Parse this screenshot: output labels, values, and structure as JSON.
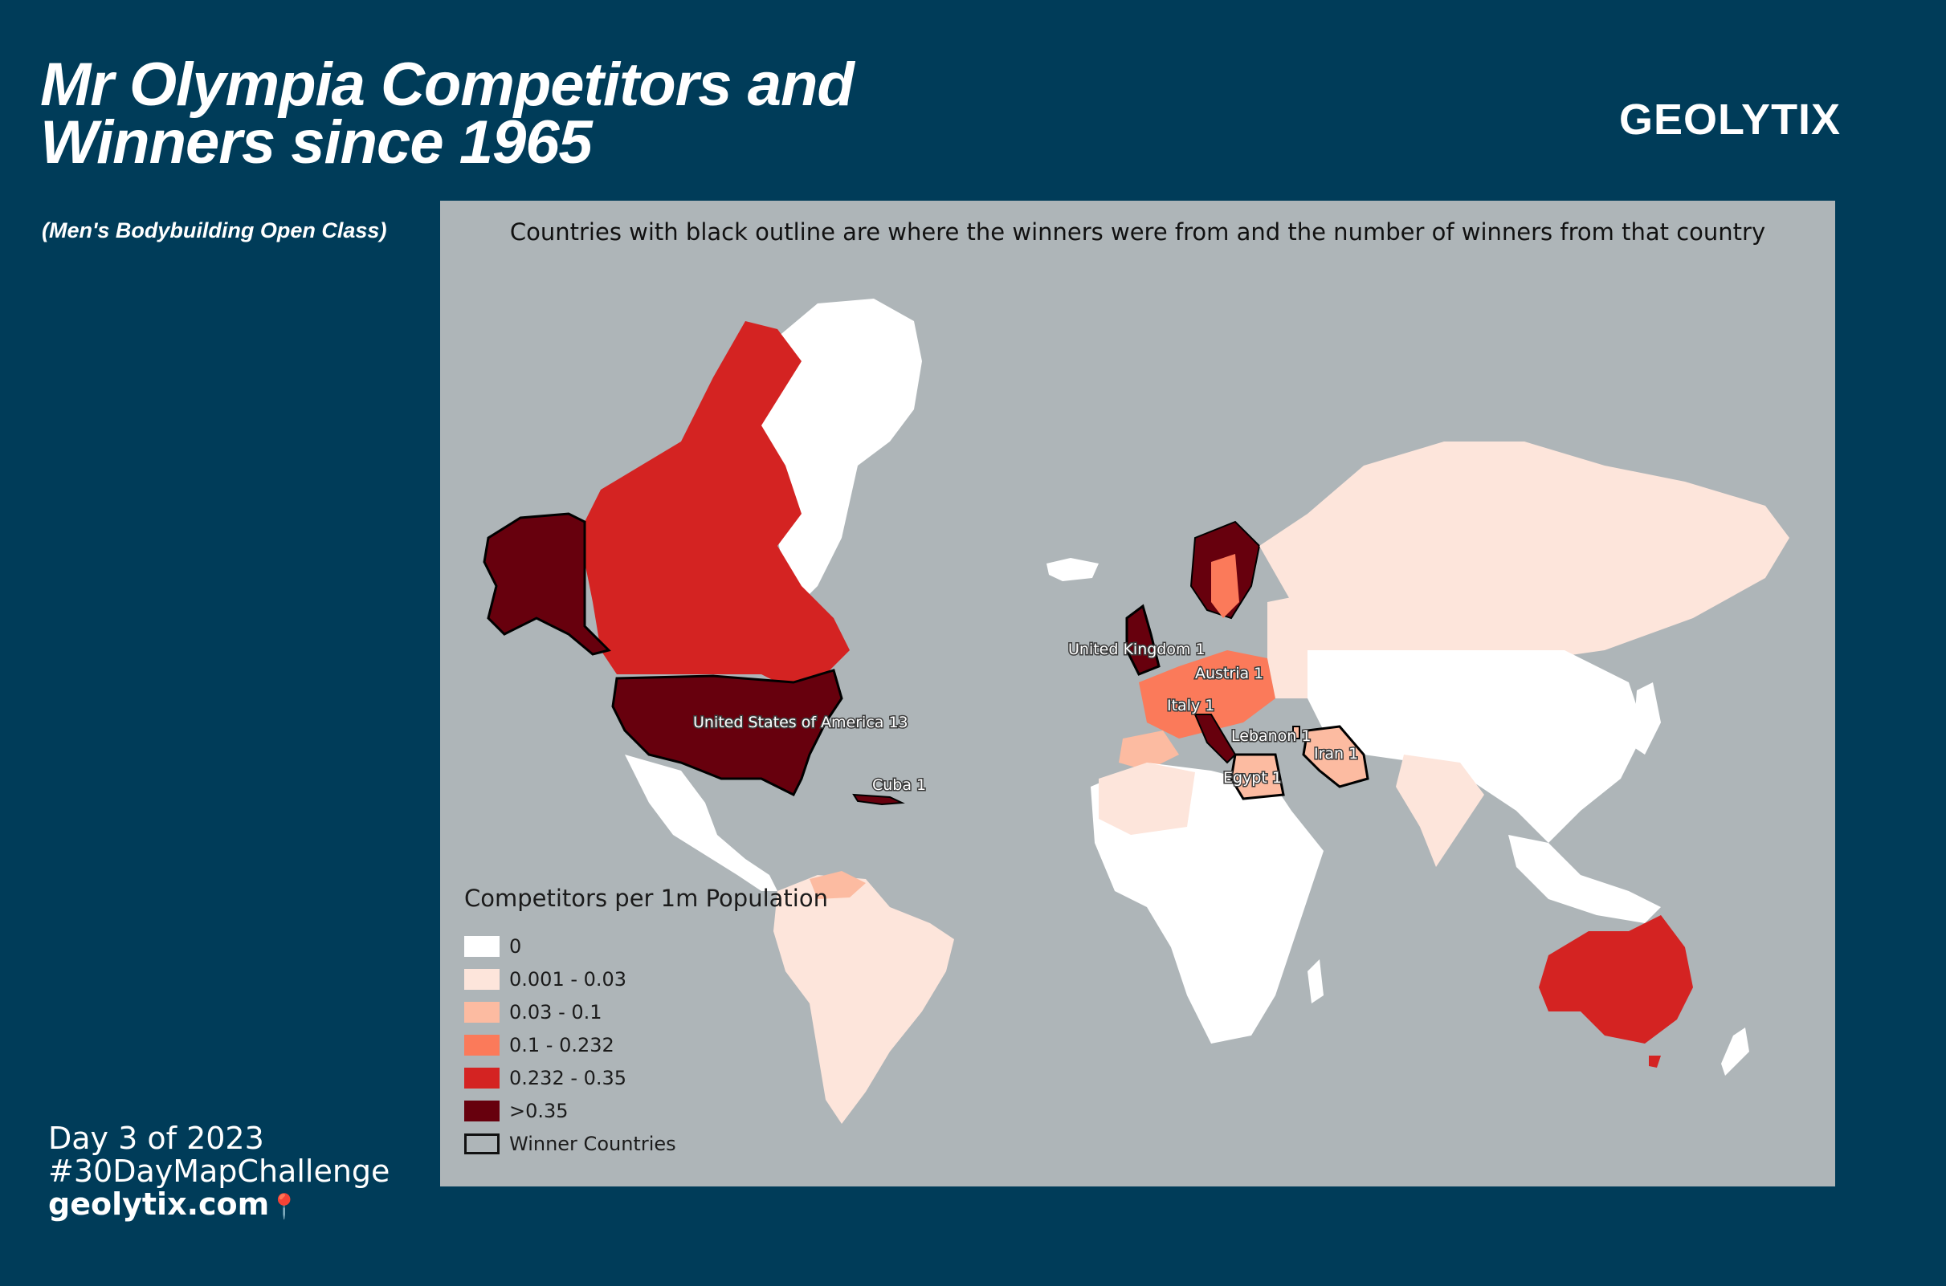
{
  "header": {
    "title_line1": "Mr Olympia Competitors and",
    "title_line2": "Winners since 1965",
    "subtitle": "(Men's Bodybuilding Open Class)",
    "brand": "GEOLYTIX"
  },
  "map": {
    "note": "Countries with black outline are where the winners were from and the number of winners from that country",
    "colors": {
      "ocean": "#aeb5b8",
      "c0": "#ffffff",
      "c1": "#fde5db",
      "c2": "#fcbba1",
      "c3": "#fb7a5a",
      "c4": "#d42322",
      "c5": "#67000d"
    },
    "winner_labels": [
      {
        "country": "United States of America",
        "count": 13,
        "text": "United States of America 13"
      },
      {
        "country": "United Kingdom",
        "count": 1,
        "text": "United Kingdom 1"
      },
      {
        "country": "Austria",
        "count": 1,
        "text": "Austria 1"
      },
      {
        "country": "Italy",
        "count": 1,
        "text": "Italy 1"
      },
      {
        "country": "Lebanon",
        "count": 1,
        "text": "Lebanon 1"
      },
      {
        "country": "Iran",
        "count": 1,
        "text": "Iran 1"
      },
      {
        "country": "Egypt",
        "count": 1,
        "text": "Egypt 1"
      },
      {
        "country": "Cuba",
        "count": 1,
        "text": "Cuba 1"
      }
    ]
  },
  "legend": {
    "title": "Competitors per 1m Population",
    "items": [
      {
        "label": "0",
        "color": "#ffffff"
      },
      {
        "label": "0.001 - 0.03",
        "color": "#fde5db"
      },
      {
        "label": "0.03 - 0.1",
        "color": "#fcbba1"
      },
      {
        "label": "0.1 - 0.232",
        "color": "#fb7a5a"
      },
      {
        "label": "0.232 - 0.35",
        "color": "#d42322"
      },
      {
        "label": ">0.35",
        "color": "#67000d"
      }
    ],
    "outline_label": "Winner Countries"
  },
  "footer": {
    "line1": "Day 3 of 2023",
    "line2": "#30DayMapChallenge",
    "site": "geolytix.com"
  }
}
